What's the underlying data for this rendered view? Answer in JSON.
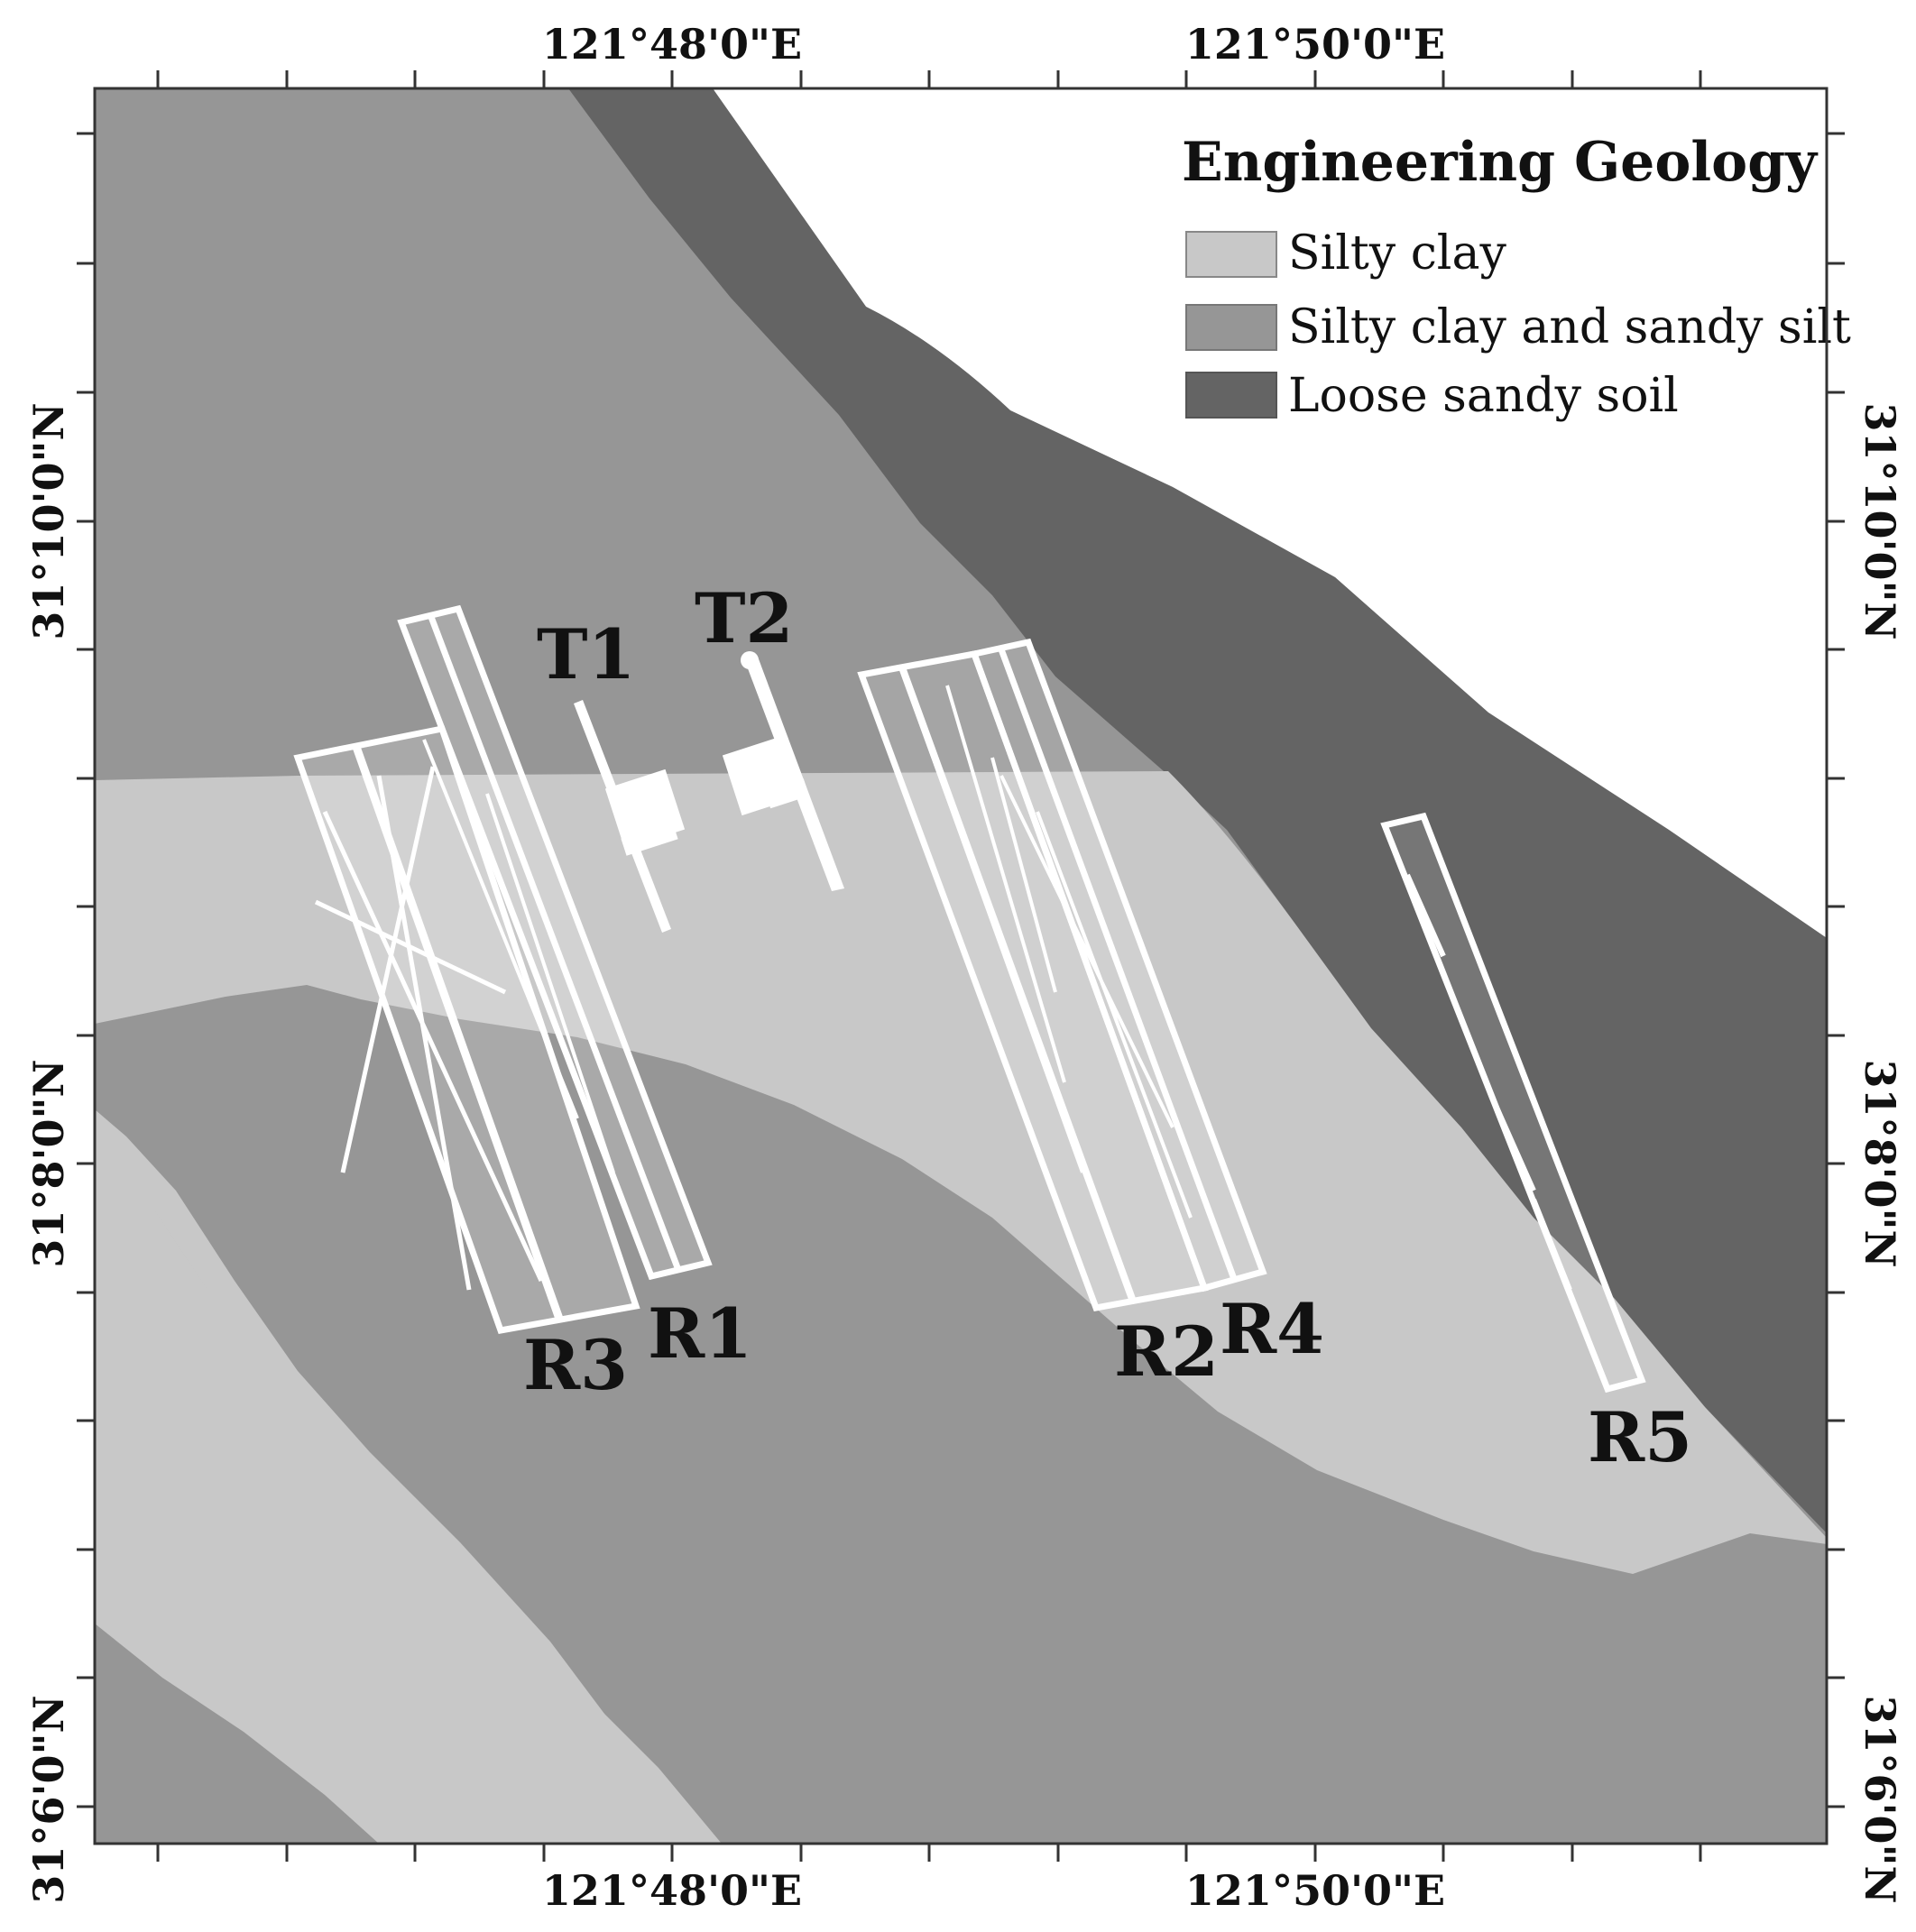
{
  "legend": {
    "title": "Engineering Geology",
    "items": [
      {
        "label": "Silty clay",
        "color": "#c8c8c8"
      },
      {
        "label": "Silty clay and sandy silt",
        "color": "#969696"
      },
      {
        "label": "Loose sandy soil",
        "color": "#646464"
      }
    ]
  },
  "axes": {
    "lon_top": [
      "121°48'0\"E",
      "121°50'0\"E"
    ],
    "lon_bottom": [
      "121°48'0\"E",
      "121°50'0\"E"
    ],
    "lat_left": [
      "31°10'0\"N",
      "31°8'0\"N",
      "31°6'0\"N"
    ],
    "lat_right": [
      "31°10'0\"N",
      "31°8'0\"N",
      "31°6'0\"N"
    ]
  },
  "features": {
    "T1": "T1",
    "T2": "T2",
    "R1": "R1",
    "R2": "R2",
    "R3": "R3",
    "R4": "R4",
    "R5": "R5"
  }
}
